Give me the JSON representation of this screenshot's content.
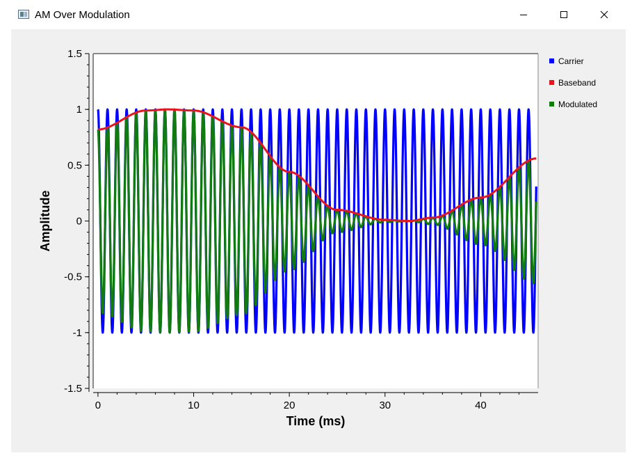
{
  "window": {
    "title": "AM Over Modulation",
    "icon": "application-icon",
    "controls": [
      "minimize-icon",
      "maximize-icon",
      "close-icon"
    ]
  },
  "colors": {
    "carrier": "#0000ff",
    "baseband": "#e8141e",
    "modulated": "#117a11",
    "background": "#f0f0f0",
    "plot_area": "#ffffff"
  },
  "chart_data": {
    "type": "line",
    "xlabel": "Time (ms)",
    "ylabel": "Amplitude",
    "xlim": [
      -0.5,
      46
    ],
    "ylim": [
      -1.5,
      1.5
    ],
    "x_ticks": [
      "0",
      "10",
      "20",
      "30",
      "40"
    ],
    "y_ticks": [
      "-1.5",
      "-1",
      "-0.5",
      "0",
      "0.5",
      "1",
      "1.5"
    ],
    "grid": false,
    "legend_position": "right",
    "series": [
      {
        "name": "Carrier",
        "description_of_form": "cosine",
        "frequency_khz": 1.0,
        "amplitude": 1.0,
        "x": [
          0,
          0.25,
          0.5,
          0.75,
          1.0
        ],
        "y": [
          1,
          0,
          -1,
          0,
          1
        ]
      },
      {
        "name": "Baseband",
        "x": [
          0,
          5,
          7.3,
          10,
          15,
          20,
          25,
          30,
          32.5,
          35,
          40,
          45.8
        ],
        "y": [
          0.82,
          0.99,
          1.0,
          0.99,
          0.84,
          0.44,
          0.1,
          0.01,
          0.0,
          0.03,
          0.21,
          0.56
        ]
      },
      {
        "name": "Modulated",
        "description_of_form": "Carrier multiplied by Baseband",
        "x_start": 0,
        "x_end": 45.8
      }
    ]
  }
}
